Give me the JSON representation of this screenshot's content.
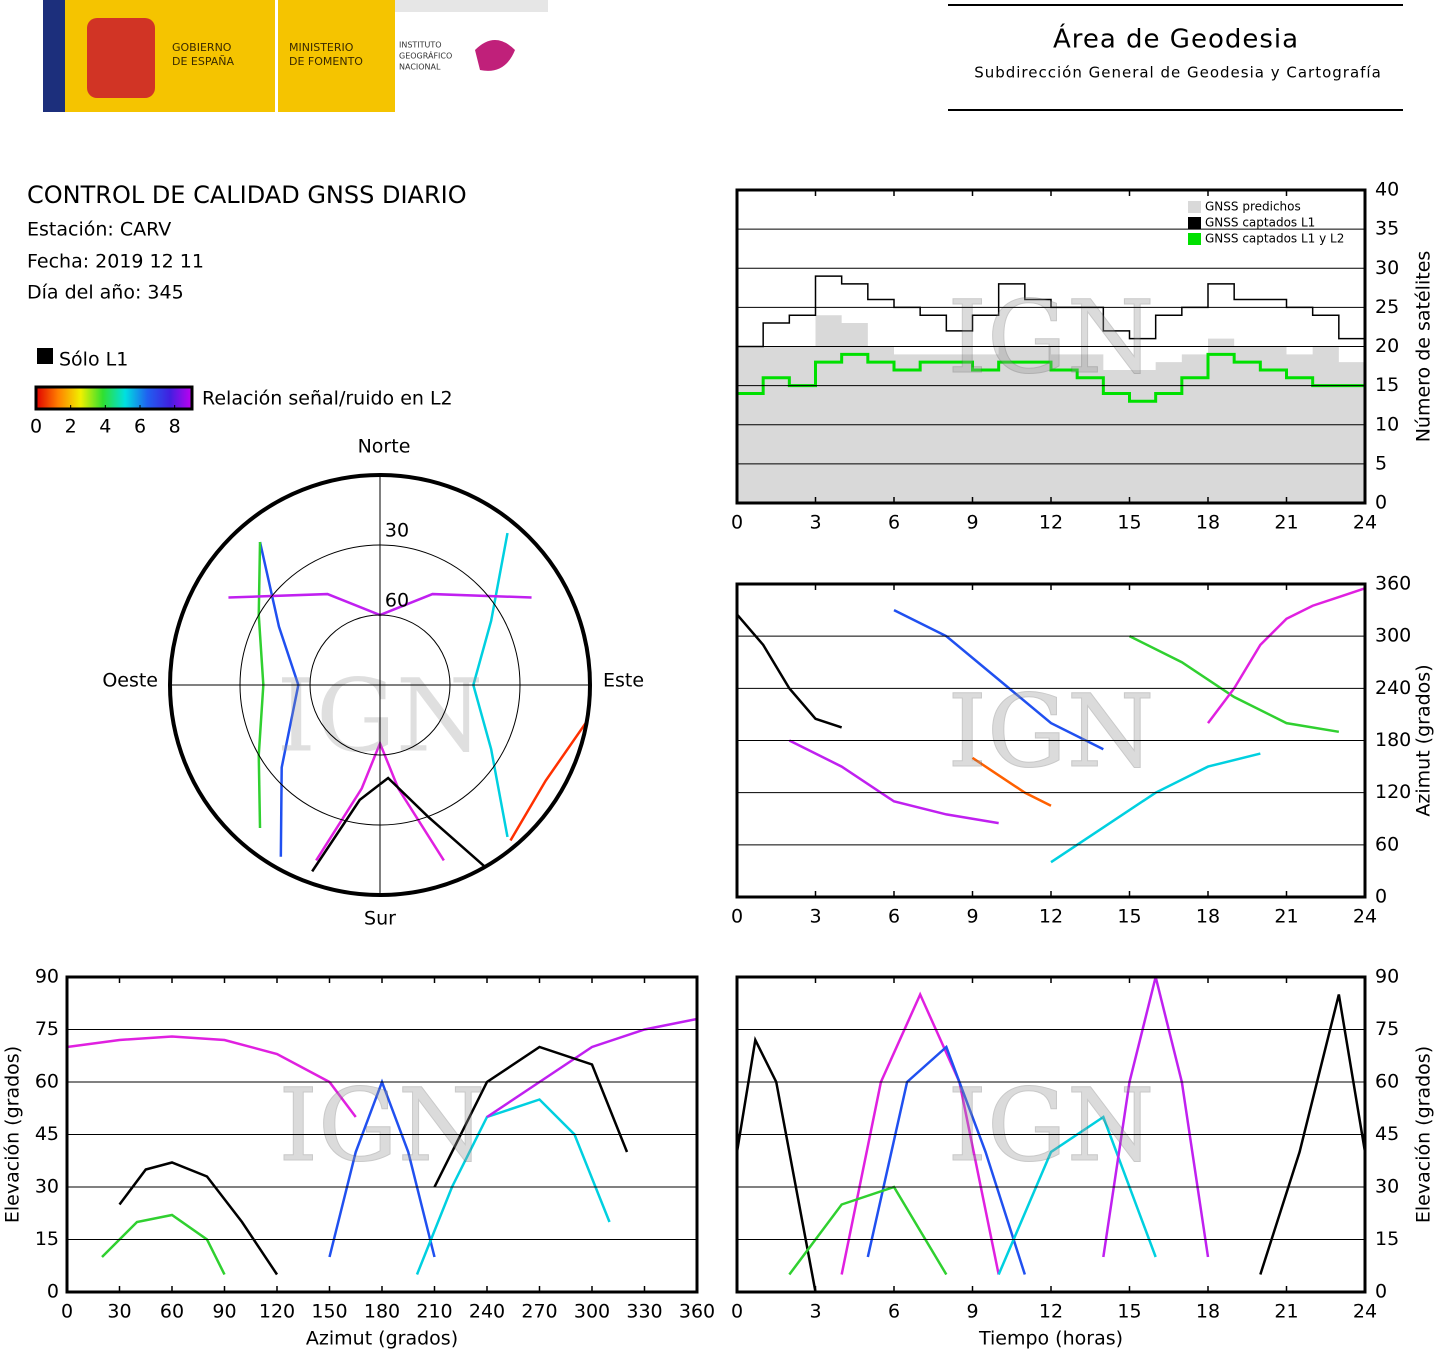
{
  "header": {
    "logos": [
      [
        "GOBIERNO",
        "DE ESPAÑA"
      ],
      [
        "MINISTERIO",
        "DE FOMENTO"
      ],
      [
        "INSTITUTO",
        "GEOGRÁFICO",
        "NACIONAL"
      ]
    ],
    "title": "Área de Geodesia",
    "subtitle": "Subdirección General de Geodesia y Cartografía"
  },
  "report": {
    "title": "CONTROL DE CALIDAD GNSS DIARIO",
    "station": "Estación: CARV",
    "date": "Fecha: 2019 12 11",
    "doy": "Día del año: 345"
  },
  "legend": {
    "l1_only": "Sólo L1",
    "l1_color": "#000000",
    "colorbar": {
      "label": "Relación señal/ruido en L2",
      "lim": [
        0,
        9
      ],
      "ticks": [
        0,
        2,
        4,
        6,
        8
      ],
      "colors": [
        "#e00000",
        "#ff8000",
        "#f0f000",
        "#30e030",
        "#00e0e0",
        "#2060f0",
        "#4020e0",
        "#c000f0"
      ]
    }
  },
  "chart_data": [
    {
      "type": "step",
      "x": [
        0,
        1,
        2,
        3,
        4,
        5,
        6,
        7,
        8,
        9,
        10,
        11,
        12,
        13,
        14,
        15,
        16,
        17,
        18,
        19,
        20,
        21,
        22,
        23,
        24
      ],
      "xlim": [
        0,
        24
      ],
      "xticks": [
        0,
        3,
        6,
        9,
        12,
        15,
        18,
        21,
        24
      ],
      "ylim": [
        0,
        40
      ],
      "yticks": [
        0,
        5,
        10,
        15,
        20,
        25,
        30,
        35,
        40
      ],
      "y_label": "Número de satélites",
      "y_axis_side": "right",
      "grid": true,
      "legend": "upper right",
      "watermark": "IGN",
      "series": [
        {
          "name": "GNSS predichos",
          "color": "#d9d9d9",
          "style": "area",
          "values": [
            20,
            20,
            20,
            24,
            23,
            20,
            19,
            19,
            19,
            19,
            20,
            20,
            19,
            19,
            17,
            17,
            18,
            19,
            21,
            20,
            20,
            19,
            20,
            18,
            21
          ]
        },
        {
          "name": "GNSS captados L1",
          "color": "#000000",
          "style": "line",
          "values": [
            20,
            23,
            24,
            29,
            28,
            26,
            25,
            24,
            22,
            24,
            28,
            26,
            25,
            25,
            22,
            21,
            24,
            25,
            28,
            26,
            26,
            25,
            24,
            21,
            22
          ]
        },
        {
          "name": "GNSS captados L1 y L2",
          "color": "#00e000",
          "style": "line",
          "values": [
            14,
            16,
            15,
            18,
            19,
            18,
            17,
            18,
            18,
            17,
            18,
            18,
            17,
            16,
            14,
            13,
            14,
            16,
            19,
            18,
            17,
            16,
            15,
            15,
            15
          ]
        }
      ]
    },
    {
      "type": "line",
      "xlim": [
        0,
        24
      ],
      "xticks": [
        0,
        3,
        6,
        9,
        12,
        15,
        18,
        21,
        24
      ],
      "ylim": [
        0,
        360
      ],
      "yticks": [
        0,
        60,
        120,
        180,
        240,
        300,
        360
      ],
      "y_label": "Azimut (grados)",
      "y_axis_side": "right",
      "grid": true,
      "watermark": "IGN",
      "series": [
        {
          "color": "#000000",
          "x": [
            0,
            1,
            2,
            3,
            4
          ],
          "values": [
            325,
            290,
            240,
            205,
            195
          ]
        },
        {
          "color": "#c020f0",
          "x": [
            2,
            4,
            6,
            8,
            10
          ],
          "values": [
            180,
            150,
            110,
            95,
            85
          ]
        },
        {
          "color": "#2050f0",
          "x": [
            6,
            8,
            10,
            12,
            14
          ],
          "values": [
            330,
            300,
            250,
            200,
            170
          ]
        },
        {
          "color": "#00d0e0",
          "x": [
            12,
            14,
            16,
            18,
            20
          ],
          "values": [
            40,
            80,
            120,
            150,
            165
          ]
        },
        {
          "color": "#30d030",
          "x": [
            15,
            17,
            19,
            21,
            23
          ],
          "values": [
            300,
            270,
            230,
            200,
            190
          ]
        },
        {
          "color": "#e020e0",
          "x": [
            18,
            19,
            20,
            21,
            22,
            23,
            24
          ],
          "values": [
            200,
            240,
            290,
            320,
            335,
            345,
            355
          ]
        },
        {
          "color": "#ff6000",
          "x": [
            9,
            10,
            11,
            12
          ],
          "values": [
            160,
            140,
            120,
            105
          ]
        }
      ]
    },
    {
      "type": "line",
      "xlim": [
        0,
        360
      ],
      "xticks": [
        0,
        30,
        60,
        90,
        120,
        150,
        180,
        210,
        240,
        270,
        300,
        330,
        360
      ],
      "ylim": [
        0,
        90
      ],
      "yticks": [
        0,
        15,
        30,
        45,
        60,
        75,
        90
      ],
      "x_label": "Azimut (grados)",
      "y_label": "Elevación (grados)",
      "y_axis_side": "left",
      "grid": true,
      "watermark": "IGN",
      "series": [
        {
          "color": "#e020e0",
          "x": [
            0,
            30,
            60,
            90,
            120,
            150,
            165
          ],
          "values": [
            70,
            72,
            73,
            72,
            68,
            60,
            50
          ]
        },
        {
          "color": "#2050f0",
          "x": [
            150,
            165,
            180,
            195,
            210
          ],
          "values": [
            10,
            40,
            60,
            40,
            10
          ]
        },
        {
          "color": "#000000",
          "x": [
            30,
            45,
            60,
            80,
            100,
            120
          ],
          "values": [
            25,
            35,
            37,
            33,
            20,
            5
          ]
        },
        {
          "color": "#00d0e0",
          "x": [
            200,
            220,
            240,
            270,
            290,
            310
          ],
          "values": [
            5,
            30,
            50,
            55,
            45,
            20
          ]
        },
        {
          "color": "#30d030",
          "x": [
            20,
            40,
            60,
            80,
            90
          ],
          "values": [
            10,
            20,
            22,
            15,
            5
          ]
        },
        {
          "color": "#c020f0",
          "x": [
            240,
            270,
            300,
            330,
            360
          ],
          "values": [
            50,
            60,
            70,
            75,
            78
          ]
        },
        {
          "color": "#000000",
          "x": [
            210,
            240,
            270,
            300,
            320
          ],
          "values": [
            30,
            60,
            70,
            65,
            40
          ]
        }
      ]
    },
    {
      "type": "line",
      "xlim": [
        0,
        24
      ],
      "xticks": [
        0,
        3,
        6,
        9,
        12,
        15,
        18,
        21,
        24
      ],
      "ylim": [
        0,
        90
      ],
      "yticks": [
        0,
        15,
        30,
        45,
        60,
        75,
        90
      ],
      "x_label": "Tiempo (horas)",
      "y_label": "Elevación (grados)",
      "y_axis_side": "right",
      "grid": true,
      "watermark": "IGN",
      "series": [
        {
          "color": "#000000",
          "x": [
            0,
            0.7,
            1.5,
            2.5,
            3
          ],
          "values": [
            40,
            72,
            60,
            20,
            0
          ]
        },
        {
          "color": "#e020e0",
          "x": [
            4,
            5.5,
            7,
            8.5,
            10
          ],
          "values": [
            5,
            60,
            85,
            60,
            5
          ]
        },
        {
          "color": "#2050f0",
          "x": [
            5,
            6.5,
            8,
            9.5,
            11
          ],
          "values": [
            10,
            60,
            70,
            40,
            5
          ]
        },
        {
          "color": "#00d0e0",
          "x": [
            10,
            12,
            14,
            16
          ],
          "values": [
            5,
            40,
            50,
            10
          ]
        },
        {
          "color": "#30d030",
          "x": [
            2,
            4,
            6,
            8
          ],
          "values": [
            5,
            25,
            30,
            5
          ]
        },
        {
          "color": "#c020f0",
          "x": [
            14,
            15,
            16,
            17,
            18
          ],
          "values": [
            10,
            60,
            90,
            60,
            10
          ]
        },
        {
          "color": "#000000",
          "x": [
            20,
            21.5,
            23,
            24
          ],
          "values": [
            5,
            40,
            85,
            40
          ]
        }
      ]
    },
    {
      "type": "polar",
      "directions": {
        "north": "Norte",
        "south": "Sur",
        "east": "Este",
        "west": "Oeste"
      },
      "rlim": [
        90,
        0
      ],
      "rticks": [
        30,
        60
      ],
      "watermark": "IGN",
      "series": [
        {
          "color": "#e020e0",
          "azimuth": [
            160,
            170,
            180,
            190,
            200
          ],
          "elevation": [
            10,
            45,
            65,
            45,
            10
          ]
        },
        {
          "color": "#2050f0",
          "azimuth": [
            210,
            230,
            270,
            300,
            320
          ],
          "elevation": [
            5,
            35,
            55,
            40,
            10
          ]
        },
        {
          "color": "#000000",
          "azimuth": [
            150,
            160,
            175,
            190,
            200
          ],
          "elevation": [
            0,
            30,
            50,
            40,
            5
          ]
        },
        {
          "color": "#00d0e0",
          "azimuth": [
            40,
            60,
            90,
            120,
            140
          ],
          "elevation": [
            5,
            35,
            50,
            35,
            5
          ]
        },
        {
          "color": "#30d030",
          "azimuth": [
            320,
            300,
            270,
            240,
            220
          ],
          "elevation": [
            10,
            30,
            40,
            30,
            10
          ]
        },
        {
          "color": "#c020f0",
          "azimuth": [
            300,
            330,
            0,
            30,
            60
          ],
          "elevation": [
            15,
            45,
            60,
            45,
            15
          ]
        },
        {
          "color": "#ff3000",
          "azimuth": [
            100,
            120,
            140
          ],
          "elevation": [
            0,
            8,
            3
          ]
        }
      ]
    }
  ]
}
